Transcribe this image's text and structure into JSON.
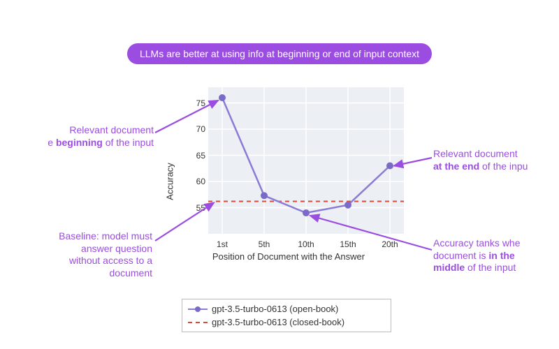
{
  "title": {
    "text": "LLMs are better at using info at beginning or end of input context",
    "bg_color": "#9a4de0",
    "text_color": "#ffffff",
    "fontsize": 14
  },
  "chart": {
    "type": "line",
    "background_color": "#eceff4",
    "grid_color": "#ffffff",
    "xlabel": "Position of Document with the Answer",
    "ylabel": "Accuracy",
    "label_fontsize": 13,
    "tick_fontsize": 12,
    "ylim": [
      50,
      78
    ],
    "yticks": [
      55,
      60,
      65,
      70,
      75
    ],
    "x_categories": [
      "1st",
      "5th",
      "10th",
      "15th",
      "20th"
    ],
    "series_line": {
      "name": "gpt-3.5-turbo-0613 (open-book)",
      "values": [
        76,
        57.3,
        54,
        55.5,
        63
      ],
      "color": "#8a7bd5",
      "marker_color": "#7a6bc8",
      "marker_radius": 5,
      "line_width": 2.5
    },
    "baseline": {
      "name": "gpt-3.5-turbo-0613 (closed-book)",
      "value": 56.2,
      "color": "#d94a3a",
      "dash": "6,5",
      "line_width": 2
    }
  },
  "annotations": {
    "color": "#9a4de0",
    "arrow_color": "#9a4de0",
    "a1_l1": "Relevant document",
    "a1_l2_pre": "e ",
    "a1_l2_b": "beginning",
    "a1_l2_post": " of the input",
    "a2_l1": "Baseline: model must",
    "a2_l2": "answer question",
    "a2_l3": "without access to a",
    "a2_l4": "document",
    "a3_l1": "Relevant document",
    "a3_l2_b": "at the end",
    "a3_l2_post": " of the inpu",
    "a4_l1": "Accuracy tanks whe",
    "a4_l2_pre": "document is ",
    "a4_l2_b": "in the",
    "a4_l3_b": "middle",
    "a4_l3_post": " of the input"
  },
  "legend": {
    "open_label": "gpt-3.5-turbo-0613 (open-book)",
    "closed_label": "gpt-3.5-turbo-0613 (closed-book)"
  }
}
